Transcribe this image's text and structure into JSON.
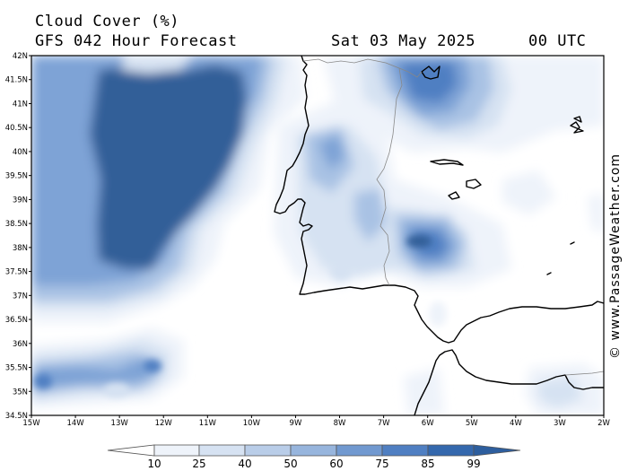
{
  "header": {
    "title": "Cloud Cover (%)",
    "subtitle": "GFS 042 Hour Forecast",
    "date": "Sat 03 May 2025",
    "time": "00 UTC"
  },
  "credit": "© www.PassageWeather.com",
  "map": {
    "lon_range": [
      -15,
      -2
    ],
    "lat_range": [
      34.5,
      42
    ],
    "lat_labels": [
      "42N",
      "41.5N",
      "41N",
      "40.5N",
      "40N",
      "39.5N",
      "39N",
      "38.5N",
      "38N",
      "37.5N",
      "37N",
      "36.5N",
      "36N",
      "35.5N",
      "35N",
      "34.5N"
    ],
    "lon_labels": [
      "15W",
      "14W",
      "13W",
      "12W",
      "11W",
      "10W",
      "9W",
      "8W",
      "7W",
      "6W",
      "5W",
      "4W",
      "3W",
      "2W"
    ]
  },
  "legend": {
    "labels": [
      "10",
      "25",
      "40",
      "50",
      "60",
      "75",
      "85",
      "99"
    ],
    "colors": [
      "#ffffff",
      "#eef3fa",
      "#d6e2f2",
      "#b9cde8",
      "#97b5dd",
      "#7199d0",
      "#4f7fc2",
      "#3468ad",
      "#2d5e9e"
    ]
  },
  "colors": {
    "very_dense": "#335f98",
    "dense": "#4f7fc2",
    "medium": "#7ea3d6",
    "light": "#a9c2e4",
    "faint": "#d6e2f2",
    "faintest": "#eef3fa",
    "coast": "#000000",
    "border": "#888888"
  }
}
